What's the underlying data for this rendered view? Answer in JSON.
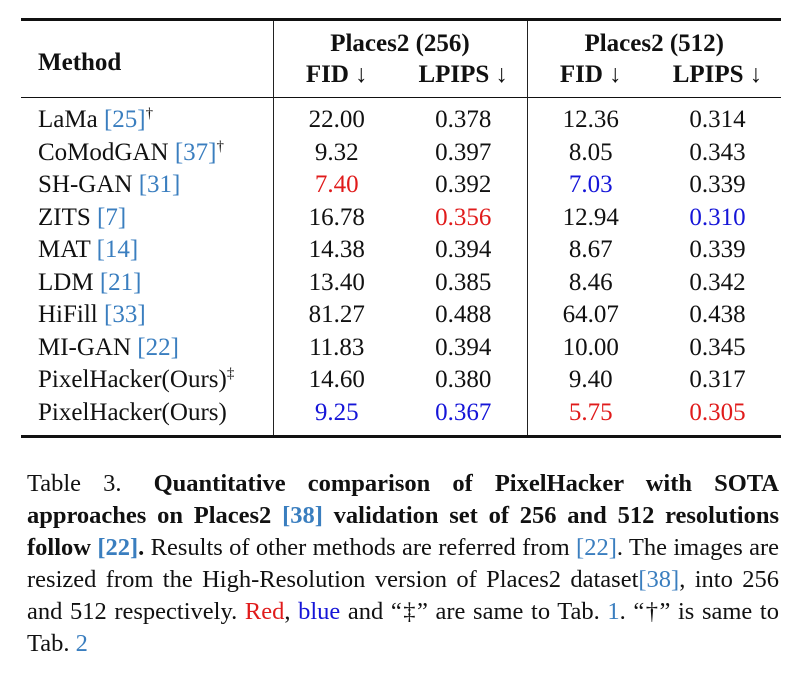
{
  "table": {
    "header": {
      "method": "Method",
      "groups": [
        "Places2 (256)",
        "Places2 (512)"
      ],
      "metrics": [
        "FID ↓",
        "LPIPS ↓",
        "FID ↓",
        "LPIPS ↓"
      ]
    },
    "rows": [
      {
        "name": "LaMa",
        "ref": "25",
        "mark": "†",
        "values": [
          "22.00",
          "0.378",
          "12.36",
          "0.314"
        ]
      },
      {
        "name": "CoModGAN",
        "ref": "37",
        "mark": "†",
        "values": [
          "9.32",
          "0.397",
          "8.05",
          "0.343"
        ]
      },
      {
        "name": "SH-GAN",
        "ref": "31",
        "mark": "",
        "values": [
          "7.40",
          "0.392",
          "7.03",
          "0.339"
        ]
      },
      {
        "name": "ZITS",
        "ref": "7",
        "mark": "",
        "values": [
          "16.78",
          "0.356",
          "12.94",
          "0.310"
        ]
      },
      {
        "name": "MAT",
        "ref": "14",
        "mark": "",
        "values": [
          "14.38",
          "0.394",
          "8.67",
          "0.339"
        ]
      },
      {
        "name": "LDM",
        "ref": "21",
        "mark": "",
        "values": [
          "13.40",
          "0.385",
          "8.46",
          "0.342"
        ]
      },
      {
        "name": "HiFill",
        "ref": "33",
        "mark": "",
        "values": [
          "81.27",
          "0.488",
          "64.07",
          "0.438"
        ]
      },
      {
        "name": "MI-GAN",
        "ref": "22",
        "mark": "",
        "values": [
          "11.83",
          "0.394",
          "10.00",
          "0.345"
        ]
      },
      {
        "name": "PixelHacker(Ours)",
        "ref": "",
        "mark": "‡",
        "values": [
          "14.60",
          "0.380",
          "9.40",
          "0.317"
        ]
      },
      {
        "name": "PixelHacker(Ours)",
        "ref": "",
        "mark": "",
        "values": [
          "9.25",
          "0.367",
          "5.75",
          "0.305"
        ]
      }
    ],
    "highlight": {
      "2": [
        "red",
        "",
        "blue",
        ""
      ],
      "3": [
        "",
        "red",
        "",
        "blue"
      ],
      "9": [
        "blue",
        "blue",
        "red",
        "red"
      ]
    },
    "colors": {
      "red": "#e01b1b",
      "blue": "#1515d8",
      "ref": "#3a7ebf"
    }
  },
  "caption": {
    "label": "Table 3.",
    "bold_1": "Quantitative comparison of PixelHacker with SOTA approaches on Places2 ",
    "ref_38a": "[38]",
    "bold_2": " validation set of 256 and 512 resolutions follow ",
    "ref_22a": "[22]",
    "bold_3": ".",
    "text_1": " Results of other methods are referred from ",
    "ref_22b": "[22]",
    "text_2": ". The images are resized from the High-Resolution version of Places2 dataset",
    "ref_38b": "[38]",
    "text_3": ", into 256 and 512 respectively. ",
    "red_word": "Red",
    "text_4": ", ",
    "blue_word": "blue",
    "text_5": " and “‡” are same to Tab. ",
    "tab_ref_1": "1",
    "text_6": ". “†” is same to Tab. ",
    "tab_ref_2": "2"
  }
}
